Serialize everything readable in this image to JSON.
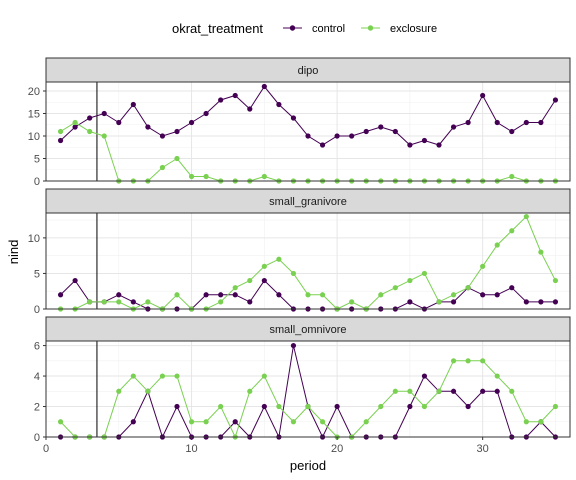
{
  "chart_data": {
    "type": "line",
    "xlabel": "period",
    "ylabel": "nind",
    "legend": {
      "title": "okrat_treatment",
      "position": "top"
    },
    "colors": {
      "control": "#440154",
      "exclosure": "#7ad151"
    },
    "xlim": [
      0,
      36
    ],
    "xticks": [
      0,
      10,
      20,
      30
    ],
    "vline_x": 3.5,
    "grid": true,
    "x": [
      1,
      2,
      3,
      4,
      5,
      6,
      7,
      8,
      9,
      10,
      11,
      12,
      13,
      14,
      15,
      16,
      17,
      18,
      19,
      20,
      21,
      22,
      23,
      24,
      25,
      26,
      27,
      28,
      29,
      30,
      31,
      32,
      33,
      34,
      35
    ],
    "panels": [
      {
        "title": "dipo",
        "ylim": [
          0,
          22
        ],
        "yticks": [
          0,
          5,
          10,
          15,
          20
        ],
        "series": [
          {
            "name": "control",
            "values": [
              9,
              12,
              14,
              15,
              13,
              17,
              12,
              10,
              11,
              13,
              15,
              18,
              19,
              16,
              21,
              17,
              14,
              10,
              8,
              10,
              10,
              11,
              12,
              11,
              8,
              9,
              8,
              12,
              13,
              19,
              13,
              11,
              13,
              13,
              18
            ]
          },
          {
            "name": "exclosure",
            "values": [
              11,
              13,
              11,
              10,
              0,
              0,
              0,
              3,
              5,
              1,
              1,
              0,
              0,
              0,
              1,
              0,
              0,
              0,
              0,
              0,
              0,
              0,
              0,
              0,
              0,
              0,
              0,
              0,
              0,
              0,
              0,
              1,
              0,
              0,
              0
            ]
          }
        ]
      },
      {
        "title": "small_granivore",
        "ylim": [
          0,
          13.5
        ],
        "yticks": [
          0,
          5,
          10
        ],
        "series": [
          {
            "name": "control",
            "values": [
              2,
              4,
              1,
              1,
              2,
              1,
              0,
              0,
              0,
              0,
              2,
              2,
              2,
              1,
              4,
              2,
              0,
              0,
              0,
              0,
              0,
              0,
              0,
              0,
              1,
              0,
              1,
              1,
              3,
              2,
              2,
              3,
              1,
              1,
              1
            ]
          },
          {
            "name": "exclosure",
            "values": [
              0,
              0,
              1,
              1,
              1,
              0,
              1,
              0,
              2,
              0,
              0,
              1,
              3,
              4,
              6,
              7,
              5,
              2,
              2,
              0,
              1,
              0,
              2,
              3,
              4,
              5,
              1,
              2,
              3,
              6,
              9,
              11,
              13,
              8,
              4
            ]
          }
        ]
      },
      {
        "title": "small_omnivore",
        "ylim": [
          0,
          6.3
        ],
        "yticks": [
          0,
          2,
          4,
          6
        ],
        "series": [
          {
            "name": "control",
            "values": [
              0,
              0,
              0,
              0,
              0,
              1,
              3,
              0,
              2,
              0,
              0,
              0,
              1,
              0,
              2,
              0,
              6,
              2,
              0,
              2,
              0,
              0,
              0,
              0,
              2,
              4,
              3,
              3,
              2,
              3,
              3,
              0,
              0,
              1,
              0
            ]
          },
          {
            "name": "exclosure",
            "values": [
              1,
              0,
              0,
              0,
              3,
              4,
              3,
              4,
              4,
              1,
              1,
              2,
              0,
              3,
              4,
              2,
              1,
              2,
              1,
              0,
              0,
              1,
              2,
              3,
              3,
              2,
              3,
              5,
              5,
              5,
              4,
              3,
              1,
              1,
              2
            ]
          }
        ]
      }
    ]
  }
}
